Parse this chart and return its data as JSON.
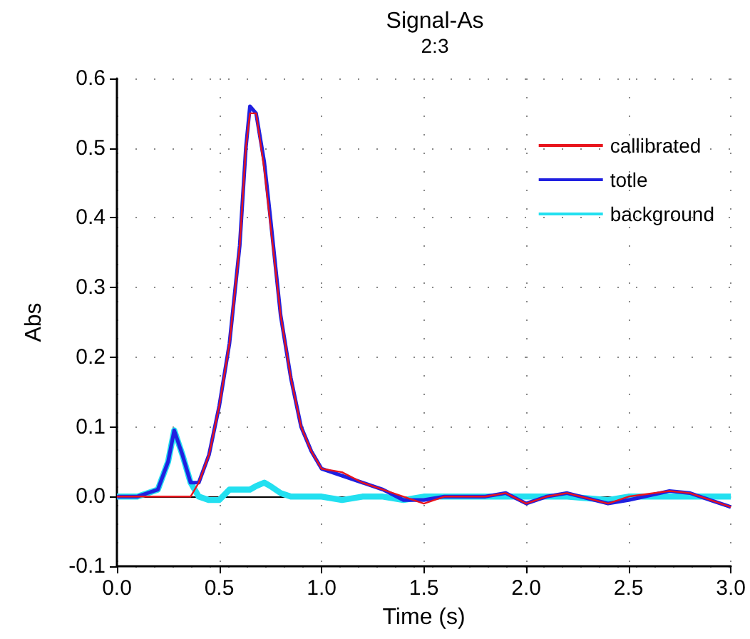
{
  "chart_data": {
    "type": "line",
    "title": "Signal-As",
    "subtitle": "2:3",
    "xlabel": "Time (s)",
    "ylabel": "Abs",
    "x": [
      0,
      0.1,
      0.15,
      0.2,
      0.25,
      0.28,
      0.32,
      0.36,
      0.4,
      0.45,
      0.5,
      0.55,
      0.6,
      0.63,
      0.65,
      0.68,
      0.72,
      0.75,
      0.8,
      0.85,
      0.9,
      0.95,
      1.0,
      1.1,
      1.2,
      1.3,
      1.4,
      1.5,
      1.6,
      1.8,
      1.9,
      2.0,
      2.1,
      2.2,
      2.4,
      2.5,
      2.7,
      2.8,
      2.9,
      3.0
    ],
    "series": [
      {
        "name": "callibrated",
        "color": "#e8141c",
        "values": [
          0,
          0,
          0,
          0,
          0,
          0,
          0,
          0,
          0.02,
          0.06,
          0.13,
          0.22,
          0.36,
          0.5,
          0.55,
          0.55,
          0.47,
          0.39,
          0.26,
          0.17,
          0.1,
          0.065,
          0.04,
          0.035,
          0.02,
          0.01,
          0,
          -0.01,
          0,
          0,
          0.005,
          -0.01,
          0,
          0.005,
          -0.01,
          0,
          0.008,
          0.005,
          -0.005,
          -0.015
        ]
      },
      {
        "name": "totle",
        "color": "#2020e0",
        "values": [
          0,
          0,
          0.005,
          0.01,
          0.05,
          0.095,
          0.06,
          0.02,
          0.02,
          0.06,
          0.13,
          0.22,
          0.36,
          0.5,
          0.56,
          0.55,
          0.48,
          0.4,
          0.26,
          0.17,
          0.1,
          0.065,
          0.04,
          0.03,
          0.02,
          0.01,
          -0.005,
          -0.005,
          0,
          0,
          0.005,
          -0.01,
          0,
          0.005,
          -0.01,
          -0.005,
          0.008,
          0.005,
          -0.005,
          -0.015
        ]
      },
      {
        "name": "background",
        "color": "#22e0f0",
        "values": [
          0,
          0,
          0.005,
          0.01,
          0.05,
          0.095,
          0.06,
          0.02,
          0,
          -0.005,
          -0.005,
          0.01,
          0.01,
          0.01,
          0.01,
          0.015,
          0.02,
          0.015,
          0.005,
          0,
          0,
          0,
          0,
          -0.005,
          0,
          0,
          -0.005,
          0,
          0,
          0,
          0,
          0,
          0,
          0,
          -0.005,
          0,
          0,
          0,
          0,
          0
        ]
      }
    ],
    "xlim": [
      0,
      3
    ],
    "xticks": [
      {
        "value": 0,
        "label": "0.0"
      },
      0.5,
      {
        "value": 1,
        "label": "1.0"
      },
      1.5,
      {
        "value": 2,
        "label": "2.0"
      },
      2.5,
      {
        "value": 3,
        "label": "3.0"
      }
    ],
    "ylim": [
      -0.1,
      0.6
    ],
    "yticks": [
      -0.1,
      {
        "value": 0,
        "label": "0.0"
      },
      0.1,
      0.2,
      0.3,
      0.4,
      0.5,
      0.6
    ],
    "ref_lines": [
      {
        "axis": "y",
        "value": 0,
        "color": "#000000"
      }
    ],
    "grid": true,
    "legend": "top right",
    "marker": "none",
    "line_style": "solid"
  }
}
